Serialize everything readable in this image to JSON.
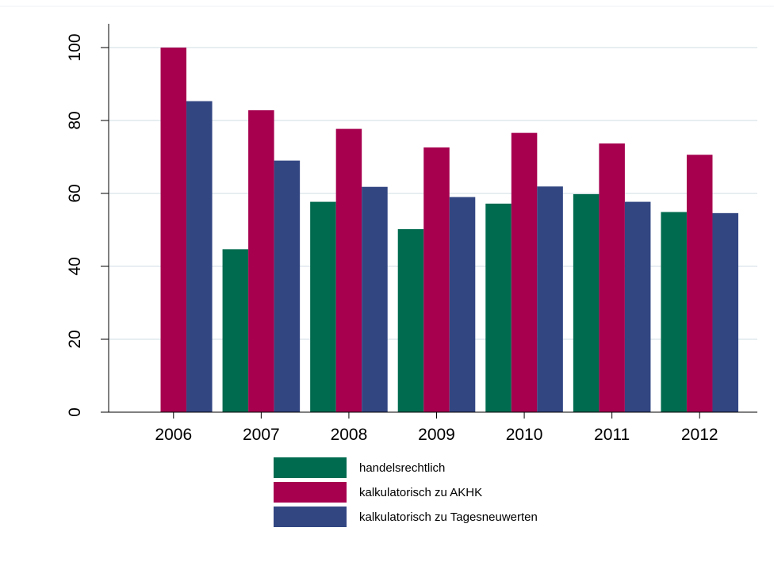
{
  "chart_data": {
    "type": "bar",
    "categories": [
      "2006",
      "2007",
      "2008",
      "2009",
      "2010",
      "2011",
      "2012"
    ],
    "series": [
      {
        "name": "handelsrechtlich",
        "color": "#006b4f",
        "values": [
          null,
          44.7,
          57.7,
          50.2,
          57.2,
          59.8,
          54.9
        ]
      },
      {
        "name": "kalkulatorisch zu AKHK",
        "color": "#a6004f",
        "values": [
          100,
          82.8,
          77.7,
          72.6,
          76.6,
          73.7,
          70.6
        ]
      },
      {
        "name": "kalkulatorisch zu Tagesneuwerten",
        "color": "#324682",
        "values": [
          85.3,
          69.0,
          61.8,
          59.0,
          61.9,
          57.7,
          54.6
        ]
      }
    ],
    "yticks": [
      "0",
      "20",
      "40",
      "60",
      "80",
      "100"
    ],
    "ylim": [
      0,
      100
    ],
    "title": "",
    "xlabel": "",
    "ylabel": "",
    "grid": true,
    "legend_position": "bottom"
  }
}
